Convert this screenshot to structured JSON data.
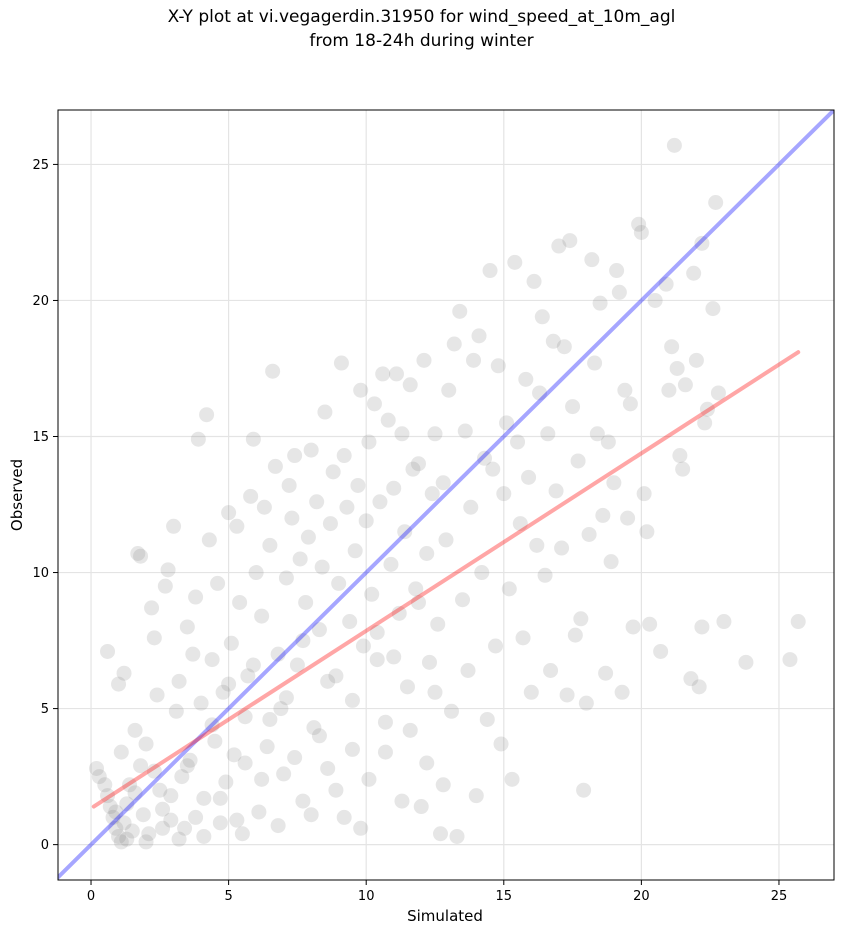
{
  "window": {
    "title_line1": "X-Y plot at vi.vegagerdin.31950 for wind_speed_at_10m_agl",
    "title_line2": "from 18-24h during winter"
  },
  "chart_data": {
    "type": "scatter",
    "title": "X-Y plot at vi.vegagerdin.31950 for wind_speed_at_10m_agl from 18-24h during winter",
    "xlabel": "Simulated",
    "ylabel": "Observed",
    "xlim": [
      -1.2,
      27.0
    ],
    "ylim": [
      -1.3,
      27.0
    ],
    "xticks": [
      0,
      5,
      10,
      15,
      20,
      25
    ],
    "yticks": [
      0,
      5,
      10,
      15,
      20,
      25
    ],
    "grid": true,
    "legend": "none",
    "point_color": "#808080",
    "point_alpha": 0.2,
    "reference_lines": [
      {
        "kind": "one_to_one",
        "color": "#0000ff",
        "alpha": 0.35,
        "x": [
          -1.2,
          27.0
        ],
        "y": [
          -1.2,
          27.0
        ]
      },
      {
        "kind": "linear_fit",
        "color": "#ff0000",
        "alpha": 0.35,
        "x": [
          0.1,
          25.7
        ],
        "y": [
          1.4,
          18.1
        ]
      }
    ],
    "points": [
      [
        0.2,
        2.8
      ],
      [
        0.3,
        2.5
      ],
      [
        0.5,
        2.2
      ],
      [
        0.6,
        1.8
      ],
      [
        0.7,
        1.4
      ],
      [
        0.8,
        1.0
      ],
      [
        0.9,
        0.6
      ],
      [
        1.0,
        0.3
      ],
      [
        1.1,
        0.1
      ],
      [
        1.2,
        0.8
      ],
      [
        0.6,
        7.1
      ],
      [
        1.0,
        5.9
      ],
      [
        1.1,
        3.4
      ],
      [
        1.2,
        6.3
      ],
      [
        1.3,
        1.5
      ],
      [
        1.4,
        2.2
      ],
      [
        1.5,
        0.5
      ],
      [
        1.6,
        4.2
      ],
      [
        1.7,
        10.7
      ],
      [
        1.8,
        10.6
      ],
      [
        1.8,
        2.9
      ],
      [
        1.9,
        1.1
      ],
      [
        2.0,
        3.7
      ],
      [
        2.1,
        0.4
      ],
      [
        2.2,
        8.7
      ],
      [
        2.3,
        7.6
      ],
      [
        2.4,
        5.5
      ],
      [
        2.5,
        2.0
      ],
      [
        2.6,
        1.3
      ],
      [
        2.7,
        9.5
      ],
      [
        2.8,
        10.1
      ],
      [
        2.9,
        0.9
      ],
      [
        3.0,
        11.7
      ],
      [
        3.1,
        4.9
      ],
      [
        3.2,
        6.0
      ],
      [
        3.3,
        2.5
      ],
      [
        3.4,
        0.6
      ],
      [
        3.5,
        8.0
      ],
      [
        3.6,
        3.1
      ],
      [
        3.7,
        7.0
      ],
      [
        3.8,
        9.1
      ],
      [
        3.9,
        14.9
      ],
      [
        4.0,
        5.2
      ],
      [
        4.1,
        1.7
      ],
      [
        4.2,
        15.8
      ],
      [
        4.3,
        11.2
      ],
      [
        4.4,
        6.8
      ],
      [
        4.5,
        3.8
      ],
      [
        4.6,
        9.6
      ],
      [
        4.7,
        0.8
      ],
      [
        4.8,
        5.6
      ],
      [
        4.9,
        2.3
      ],
      [
        5.0,
        12.2
      ],
      [
        5.1,
        7.4
      ],
      [
        5.2,
        3.3
      ],
      [
        5.3,
        11.7
      ],
      [
        5.4,
        8.9
      ],
      [
        5.5,
        0.4
      ],
      [
        5.6,
        4.7
      ],
      [
        5.7,
        6.2
      ],
      [
        5.8,
        12.8
      ],
      [
        5.9,
        14.9
      ],
      [
        6.0,
        10.0
      ],
      [
        6.1,
        1.2
      ],
      [
        6.2,
        8.4
      ],
      [
        6.3,
        12.4
      ],
      [
        6.4,
        3.6
      ],
      [
        6.5,
        11.0
      ],
      [
        6.6,
        17.4
      ],
      [
        6.7,
        13.9
      ],
      [
        6.8,
        7.0
      ],
      [
        6.9,
        5.0
      ],
      [
        7.0,
        2.6
      ],
      [
        7.1,
        9.8
      ],
      [
        7.2,
        13.2
      ],
      [
        7.3,
        12.0
      ],
      [
        7.4,
        14.3
      ],
      [
        7.5,
        6.6
      ],
      [
        7.6,
        10.5
      ],
      [
        7.7,
        1.6
      ],
      [
        7.8,
        8.9
      ],
      [
        7.9,
        11.3
      ],
      [
        8.0,
        14.5
      ],
      [
        8.1,
        4.3
      ],
      [
        8.2,
        12.6
      ],
      [
        8.3,
        7.9
      ],
      [
        8.4,
        10.2
      ],
      [
        8.5,
        15.9
      ],
      [
        8.6,
        6.0
      ],
      [
        8.7,
        11.8
      ],
      [
        8.8,
        13.7
      ],
      [
        8.9,
        2.0
      ],
      [
        9.0,
        9.6
      ],
      [
        9.1,
        17.7
      ],
      [
        9.2,
        14.3
      ],
      [
        9.3,
        12.4
      ],
      [
        9.4,
        8.2
      ],
      [
        9.5,
        5.3
      ],
      [
        9.6,
        10.8
      ],
      [
        9.7,
        13.2
      ],
      [
        9.8,
        16.7
      ],
      [
        9.9,
        7.3
      ],
      [
        10.0,
        11.9
      ],
      [
        10.1,
        14.8
      ],
      [
        10.2,
        9.2
      ],
      [
        10.3,
        16.2
      ],
      [
        10.4,
        6.8
      ],
      [
        10.5,
        12.6
      ],
      [
        10.6,
        17.3
      ],
      [
        10.7,
        3.4
      ],
      [
        10.8,
        15.6
      ],
      [
        10.9,
        10.3
      ],
      [
        11.0,
        13.1
      ],
      [
        11.1,
        17.3
      ],
      [
        11.2,
        8.5
      ],
      [
        11.3,
        15.1
      ],
      [
        11.4,
        11.5
      ],
      [
        11.5,
        5.8
      ],
      [
        11.6,
        16.9
      ],
      [
        11.7,
        13.8
      ],
      [
        11.8,
        9.4
      ],
      [
        11.9,
        14.0
      ],
      [
        12.0,
        1.4
      ],
      [
        12.1,
        17.8
      ],
      [
        12.2,
        10.7
      ],
      [
        12.3,
        6.7
      ],
      [
        12.4,
        12.9
      ],
      [
        12.5,
        15.1
      ],
      [
        12.6,
        8.1
      ],
      [
        12.7,
        0.4
      ],
      [
        12.8,
        13.3
      ],
      [
        12.9,
        11.2
      ],
      [
        13.0,
        16.7
      ],
      [
        13.1,
        4.9
      ],
      [
        13.2,
        18.4
      ],
      [
        13.3,
        0.3
      ],
      [
        13.4,
        19.6
      ],
      [
        13.5,
        9.0
      ],
      [
        13.6,
        15.2
      ],
      [
        13.7,
        6.4
      ],
      [
        13.8,
        12.4
      ],
      [
        13.9,
        17.8
      ],
      [
        14.0,
        1.8
      ],
      [
        14.1,
        18.7
      ],
      [
        14.2,
        10.0
      ],
      [
        14.3,
        14.2
      ],
      [
        14.4,
        4.6
      ],
      [
        14.5,
        21.1
      ],
      [
        14.6,
        13.8
      ],
      [
        14.7,
        7.3
      ],
      [
        14.8,
        17.6
      ],
      [
        14.9,
        3.7
      ],
      [
        15.0,
        12.9
      ],
      [
        15.1,
        15.5
      ],
      [
        15.2,
        9.4
      ],
      [
        15.3,
        2.4
      ],
      [
        15.4,
        21.4
      ],
      [
        15.5,
        14.8
      ],
      [
        15.6,
        11.8
      ],
      [
        15.7,
        7.6
      ],
      [
        15.8,
        17.1
      ],
      [
        15.9,
        13.5
      ],
      [
        16.0,
        5.6
      ],
      [
        16.1,
        20.7
      ],
      [
        16.2,
        11.0
      ],
      [
        16.3,
        16.6
      ],
      [
        16.4,
        19.4
      ],
      [
        16.5,
        9.9
      ],
      [
        16.6,
        15.1
      ],
      [
        16.7,
        6.4
      ],
      [
        16.8,
        18.5
      ],
      [
        16.9,
        13.0
      ],
      [
        17.0,
        22.0
      ],
      [
        17.1,
        10.9
      ],
      [
        17.2,
        18.3
      ],
      [
        17.3,
        5.5
      ],
      [
        17.4,
        22.2
      ],
      [
        17.5,
        16.1
      ],
      [
        17.6,
        7.7
      ],
      [
        17.7,
        14.1
      ],
      [
        17.8,
        8.3
      ],
      [
        17.9,
        2.0
      ],
      [
        18.0,
        5.2
      ],
      [
        18.1,
        11.4
      ],
      [
        18.2,
        21.5
      ],
      [
        18.3,
        17.7
      ],
      [
        18.4,
        15.1
      ],
      [
        18.5,
        19.9
      ],
      [
        18.6,
        12.1
      ],
      [
        18.7,
        6.3
      ],
      [
        18.8,
        14.8
      ],
      [
        18.9,
        10.4
      ],
      [
        19.0,
        13.3
      ],
      [
        19.1,
        21.1
      ],
      [
        19.2,
        20.3
      ],
      [
        19.3,
        5.6
      ],
      [
        19.4,
        16.7
      ],
      [
        19.5,
        12.0
      ],
      [
        19.6,
        16.2
      ],
      [
        19.7,
        8.0
      ],
      [
        19.9,
        22.8
      ],
      [
        20.0,
        22.5
      ],
      [
        20.1,
        12.9
      ],
      [
        20.2,
        11.5
      ],
      [
        20.3,
        8.1
      ],
      [
        20.5,
        20.0
      ],
      [
        20.7,
        7.1
      ],
      [
        20.9,
        20.6
      ],
      [
        21.0,
        16.7
      ],
      [
        21.1,
        18.3
      ],
      [
        21.2,
        25.7
      ],
      [
        21.3,
        17.5
      ],
      [
        21.4,
        14.3
      ],
      [
        21.5,
        13.8
      ],
      [
        21.6,
        16.9
      ],
      [
        21.8,
        6.1
      ],
      [
        21.9,
        21.0
      ],
      [
        22.0,
        17.8
      ],
      [
        22.1,
        5.8
      ],
      [
        22.2,
        22.1
      ],
      [
        22.3,
        15.5
      ],
      [
        22.4,
        16.0
      ],
      [
        22.6,
        19.7
      ],
      [
        22.7,
        23.6
      ],
      [
        22.8,
        16.6
      ],
      [
        23.0,
        8.2
      ],
      [
        23.8,
        6.7
      ],
      [
        25.4,
        6.8
      ],
      [
        25.7,
        8.2
      ],
      [
        22.2,
        8.0
      ],
      [
        0.9,
        1.2
      ],
      [
        1.3,
        0.2
      ],
      [
        1.6,
        1.9
      ],
      [
        2.0,
        0.1
      ],
      [
        2.3,
        2.7
      ],
      [
        2.6,
        0.6
      ],
      [
        2.9,
        1.8
      ],
      [
        3.2,
        0.2
      ],
      [
        3.5,
        2.9
      ],
      [
        3.8,
        1.0
      ],
      [
        4.1,
        0.3
      ],
      [
        4.4,
        4.4
      ],
      [
        4.7,
        1.7
      ],
      [
        5.0,
        5.9
      ],
      [
        5.3,
        0.9
      ],
      [
        5.6,
        3.0
      ],
      [
        5.9,
        6.6
      ],
      [
        6.2,
        2.4
      ],
      [
        6.5,
        4.6
      ],
      [
        6.8,
        0.7
      ],
      [
        7.1,
        5.4
      ],
      [
        7.4,
        3.2
      ],
      [
        7.7,
        7.5
      ],
      [
        8.0,
        1.1
      ],
      [
        8.3,
        4.0
      ],
      [
        8.6,
        2.8
      ],
      [
        8.9,
        6.2
      ],
      [
        9.2,
        1.0
      ],
      [
        9.5,
        3.5
      ],
      [
        9.8,
        0.6
      ],
      [
        10.1,
        2.4
      ],
      [
        10.4,
        7.8
      ],
      [
        10.7,
        4.5
      ],
      [
        11.0,
        6.9
      ],
      [
        11.3,
        1.6
      ],
      [
        11.6,
        4.2
      ],
      [
        11.9,
        8.9
      ],
      [
        12.2,
        3.0
      ],
      [
        12.5,
        5.6
      ],
      [
        12.8,
        2.2
      ]
    ]
  }
}
